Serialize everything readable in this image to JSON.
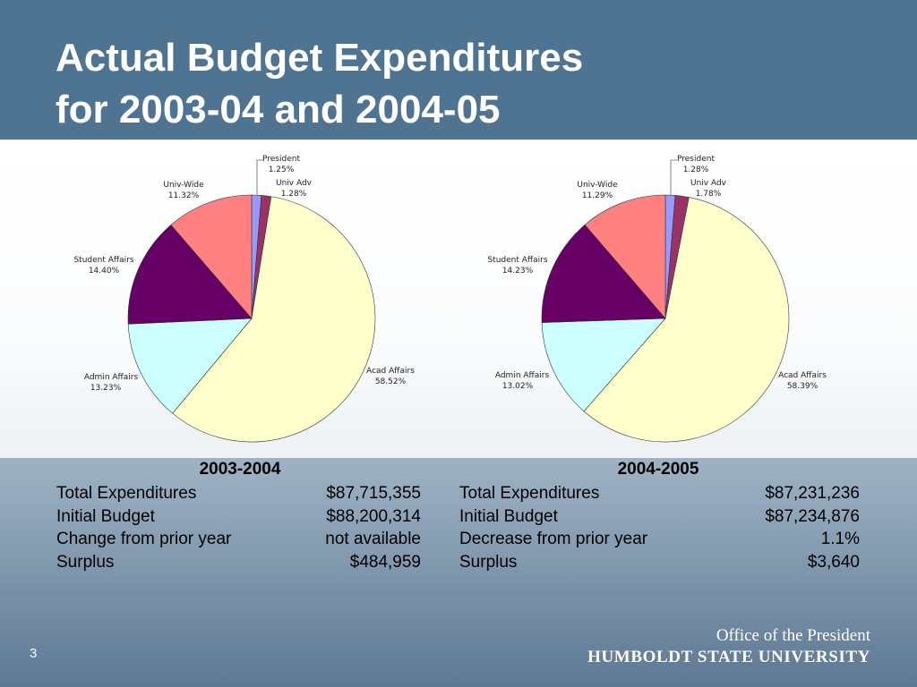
{
  "slide": {
    "title_line1": "Actual Budget Expenditures",
    "title_line2": "for 2003-04 and 2004-05",
    "page_number": "3",
    "footer_office": "Office of the President",
    "footer_university": "HUMBOLDT STATE UNIVERSITY"
  },
  "chart_data": [
    {
      "type": "pie",
      "categories": [
        "President",
        "Univ Adv",
        "Acad Affairs",
        "Admin Affairs",
        "Student Affairs",
        "Univ-Wide"
      ],
      "values": [
        1.25,
        1.28,
        58.52,
        13.23,
        14.4,
        11.32
      ],
      "value_labels": [
        "1.25%",
        "1.28%",
        "58.52%",
        "13.23%",
        "14.40%",
        "11.32%"
      ],
      "colors": [
        "#9999ff",
        "#993366",
        "#ffffcc",
        "#ccffff",
        "#660066",
        "#ff8080"
      ]
    },
    {
      "type": "pie",
      "categories": [
        "President",
        "Univ Adv",
        "Acad Affairs",
        "Admin Affairs",
        "Student Affairs",
        "Univ-Wide"
      ],
      "values": [
        1.28,
        1.78,
        58.39,
        13.02,
        14.23,
        11.29
      ],
      "value_labels": [
        "1.28%",
        "1.78%",
        "58.39%",
        "13.02%",
        "14.23%",
        "11.29%"
      ],
      "colors": [
        "#9999ff",
        "#993366",
        "#ffffcc",
        "#ccffff",
        "#660066",
        "#ff8080"
      ]
    }
  ],
  "tables": [
    {
      "heading": "2003-2004",
      "rows": [
        {
          "label": "Total Expenditures",
          "value": "$87,715,355"
        },
        {
          "label": "Initial Budget",
          "value": "$88,200,314"
        },
        {
          "label": "Change from prior year",
          "value": "not available"
        },
        {
          "label": "Surplus",
          "value": "$484,959"
        }
      ]
    },
    {
      "heading": "2004-2005",
      "rows": [
        {
          "label": "Total Expenditures",
          "value": "$87,231,236"
        },
        {
          "label": "Initial Budget",
          "value": "$87,234,876"
        },
        {
          "label": "Decrease from prior year",
          "value": "1.1%"
        },
        {
          "label": "Surplus",
          "value": "$3,640"
        }
      ]
    }
  ]
}
